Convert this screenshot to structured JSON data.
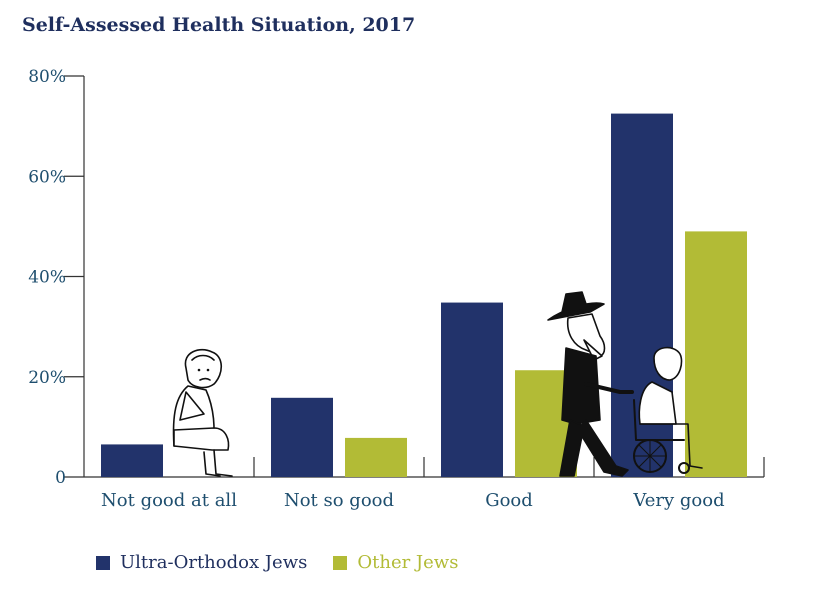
{
  "chart_data": {
    "type": "bar",
    "title": "Self-Assessed Health Situation, 2017",
    "categories": [
      "Not good at all",
      "Not so good",
      "Good",
      "Very good"
    ],
    "series": [
      {
        "name": "Ultra-Orthodox Jews",
        "color": "#22336b",
        "values": [
          6.5,
          15.8,
          34.8,
          72.5
        ]
      },
      {
        "name": "Other Jews",
        "color": "#b2bb36",
        "values": [
          0,
          7.8,
          21.3,
          49
        ]
      }
    ],
    "yticks": [
      "0",
      "20%",
      "40%",
      "60%",
      "80%"
    ],
    "ytick_values": [
      0,
      20,
      40,
      60,
      80
    ],
    "ylim": [
      0,
      80
    ],
    "grid": false,
    "legend_position": "bottom-left",
    "label_color": "#1e4e6e",
    "decorations": [
      "sitting-elderly-woman-with-sling",
      "orthodox-man-pushing-wheelchair"
    ]
  }
}
